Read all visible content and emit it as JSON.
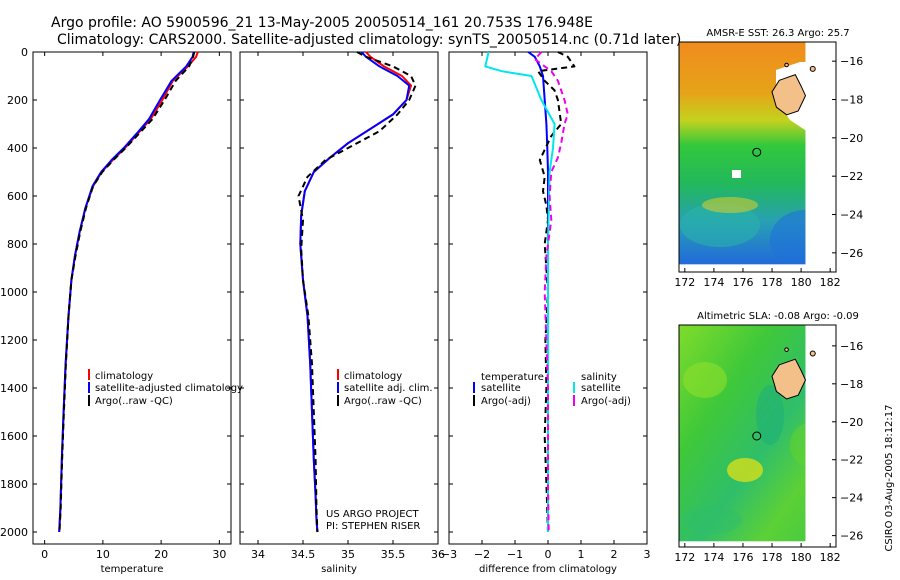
{
  "header": {
    "line1": "Argo profile: AO 5900596_21 13-May-2005 20050514_161 20.753S 176.948E",
    "line2": "Climatology: CARS2000. Satellite-adjusted climatology: synTS_20050514.nc (0.71d later)"
  },
  "colors": {
    "climatology": "#ff0000",
    "satellite": "#0000ff",
    "argo": "#000000",
    "sat_salinity": "#00e5ee",
    "argo_salinity": "#ee00ee",
    "land": "#f4c08a"
  },
  "chart_data": [
    {
      "id": "temperature",
      "type": "line",
      "xlabel": "temperature",
      "xlim": [
        -2,
        32
      ],
      "ylim": [
        2050,
        0
      ],
      "xticks": [
        0,
        10,
        20,
        30
      ],
      "yticks": [
        0,
        200,
        400,
        600,
        800,
        1000,
        1200,
        1400,
        1600,
        1800,
        2000
      ],
      "legend": [
        "climatology",
        "satellite-adjusted climatology",
        "Argo(..raw -QC)"
      ],
      "series": [
        {
          "name": "climatology",
          "color": "#ff0000",
          "dash": "",
          "x": [
            26.3,
            26.0,
            24.6,
            22.0,
            20.2,
            18.2,
            16.0,
            13.8,
            11.7,
            9.8,
            8.3,
            7.0,
            6.0,
            5.2,
            4.6,
            4.1,
            3.6,
            3.25,
            2.95,
            2.7,
            2.5
          ],
          "y": [
            0,
            20,
            60,
            120,
            200,
            280,
            340,
            400,
            450,
            500,
            560,
            650,
            750,
            850,
            950,
            1100,
            1300,
            1500,
            1700,
            1900,
            2000
          ]
        },
        {
          "name": "satellite-adjusted climatology",
          "color": "#0000ff",
          "dash": "",
          "x": [
            25.6,
            25.4,
            24.3,
            21.8,
            19.8,
            17.9,
            15.8,
            13.6,
            11.5,
            9.7,
            8.2,
            7.0,
            6.0,
            5.2,
            4.6,
            4.1,
            3.6,
            3.25,
            2.95,
            2.7,
            2.5
          ],
          "y": [
            0,
            20,
            60,
            120,
            200,
            280,
            340,
            400,
            450,
            500,
            560,
            650,
            750,
            850,
            950,
            1100,
            1300,
            1500,
            1700,
            1900,
            2000
          ]
        },
        {
          "name": "Argo(..raw -QC)",
          "color": "#000000",
          "dash": "6,4",
          "x": [
            25.7,
            25.5,
            24.8,
            22.5,
            20.6,
            18.5,
            16.2,
            13.9,
            11.8,
            9.9,
            8.3,
            7.1,
            6.1,
            5.3,
            4.6,
            4.1,
            3.65,
            3.3,
            3.0,
            2.75,
            2.55
          ],
          "y": [
            0,
            20,
            60,
            120,
            200,
            280,
            340,
            400,
            450,
            500,
            560,
            650,
            750,
            850,
            950,
            1100,
            1300,
            1500,
            1700,
            1900,
            2000
          ]
        }
      ]
    },
    {
      "id": "salinity",
      "type": "line",
      "xlabel": "salinity",
      "xlim": [
        33.8,
        36.0
      ],
      "ylim": [
        2050,
        0
      ],
      "xticks": [
        34,
        34.5,
        35,
        35.5,
        36
      ],
      "legend": [
        "climatology",
        "satellite adj. clim.",
        "Argo(..raw -QC)"
      ],
      "annotation_line1": "US ARGO PROJECT",
      "annotation_line2": "PI: STEPHEN RISER",
      "series": [
        {
          "name": "climatology",
          "color": "#ff0000",
          "dash": "",
          "x": [
            35.2,
            35.25,
            35.4,
            35.6,
            35.7,
            35.65,
            35.5,
            35.25,
            35.0,
            34.8,
            34.62,
            34.52,
            34.48,
            34.47,
            34.5,
            34.55,
            34.58,
            34.6,
            34.62,
            34.64,
            34.65,
            34.66
          ],
          "y": [
            0,
            20,
            60,
            100,
            140,
            200,
            260,
            320,
            380,
            440,
            500,
            580,
            680,
            800,
            950,
            1100,
            1300,
            1500,
            1700,
            1850,
            1950,
            2000
          ]
        },
        {
          "name": "satellite adj. clim.",
          "color": "#0000ff",
          "dash": "",
          "x": [
            35.15,
            35.2,
            35.35,
            35.55,
            35.68,
            35.65,
            35.5,
            35.25,
            35.0,
            34.8,
            34.62,
            34.52,
            34.48,
            34.47,
            34.5,
            34.55,
            34.58,
            34.6,
            34.62,
            34.64,
            34.65,
            34.66
          ],
          "y": [
            0,
            20,
            60,
            100,
            140,
            200,
            260,
            320,
            380,
            440,
            500,
            580,
            680,
            800,
            950,
            1100,
            1300,
            1500,
            1700,
            1850,
            1950,
            2000
          ]
        },
        {
          "name": "Argo(..raw -QC)",
          "color": "#000000",
          "dash": "6,4",
          "x": [
            35.1,
            35.2,
            35.5,
            35.7,
            35.75,
            35.68,
            35.55,
            35.35,
            35.05,
            34.75,
            34.55,
            34.45,
            34.5,
            34.48,
            34.5,
            34.56,
            34.6,
            34.62,
            34.64,
            34.65,
            34.66
          ],
          "y": [
            0,
            20,
            60,
            100,
            140,
            200,
            260,
            330,
            390,
            450,
            520,
            600,
            700,
            820,
            950,
            1100,
            1300,
            1500,
            1700,
            1900,
            2000
          ]
        }
      ]
    },
    {
      "id": "difference",
      "type": "line",
      "xlabel": "difference from climatology",
      "xlim": [
        -3,
        3
      ],
      "ylim": [
        2050,
        0
      ],
      "xticks": [
        -3,
        -2,
        -1,
        0,
        1,
        2,
        3
      ],
      "legend_left": {
        "heading": "temperature",
        "items": [
          "satellite",
          "Argo(-adj)"
        ]
      },
      "legend_right": {
        "heading": "salinity",
        "items": [
          "satellite",
          "Argo(-adj)"
        ]
      },
      "series": [
        {
          "name": "temperature satellite",
          "color": "#0000ff",
          "dash": "",
          "x": [
            -0.6,
            -0.4,
            -0.25,
            -0.15,
            -0.1,
            -0.05,
            -0.02,
            0,
            0,
            0,
            0
          ],
          "y": [
            0,
            20,
            60,
            100,
            200,
            300,
            400,
            500,
            800,
            1400,
            2000
          ]
        },
        {
          "name": "temperature Argo(-adj)",
          "color": "#000000",
          "dash": "6,4",
          "x": [
            0.3,
            0.6,
            0.8,
            -0.3,
            -0.1,
            0.2,
            0.3,
            0.4,
            0.1,
            -0.25,
            -0.1,
            -0.15,
            -0.05,
            0,
            -0.1,
            0,
            -0.08,
            -0.05,
            -0.1,
            -0.05,
            0
          ],
          "y": [
            0,
            20,
            60,
            80,
            120,
            160,
            200,
            300,
            350,
            450,
            520,
            580,
            640,
            700,
            800,
            1000,
            1200,
            1400,
            1600,
            1800,
            2000
          ]
        },
        {
          "name": "salinity satellite",
          "color": "#00e5ee",
          "dash": "",
          "x": [
            -1.8,
            -1.9,
            -1.4,
            -0.5,
            -0.2,
            0.2,
            0.15,
            0.05,
            0,
            0,
            0
          ],
          "y": [
            0,
            60,
            80,
            100,
            200,
            300,
            400,
            500,
            800,
            1400,
            2000
          ]
        },
        {
          "name": "salinity Argo(-adj)",
          "color": "#ee00ee",
          "dash": "6,4",
          "x": [
            -0.2,
            -0.4,
            0.1,
            0.3,
            0.5,
            0.6,
            0.5,
            0.4,
            0.3,
            0.1,
            0.05,
            0.1,
            -0.05,
            -0.1,
            0,
            0,
            0.02
          ],
          "y": [
            0,
            30,
            80,
            120,
            200,
            260,
            300,
            380,
            440,
            500,
            600,
            700,
            850,
            1000,
            1400,
            1800,
            2000
          ]
        }
      ]
    },
    {
      "id": "sst_map",
      "type": "heatmap",
      "title": "AMSR-E SST: 26.3  Argo: 25.7",
      "xlim": [
        171.6,
        182.4
      ],
      "ylim": [
        -27.0,
        -15.0
      ],
      "xticks": [
        172,
        174,
        176,
        178,
        180,
        182
      ],
      "yticks": [
        -16,
        -18,
        -20,
        -22,
        -24,
        -26
      ],
      "data_extent": [
        171.6,
        180.3,
        -26.6,
        -15.0
      ],
      "profile_location": [
        176.95,
        -20.75
      ],
      "land": [
        [
          178.5,
          -17.0
        ],
        [
          179.6,
          -16.7
        ],
        [
          180.0,
          -17.3
        ],
        [
          180.3,
          -17.8
        ],
        [
          179.8,
          -18.6
        ],
        [
          179.0,
          -18.8
        ],
        [
          178.3,
          -18.4
        ],
        [
          178.0,
          -17.6
        ]
      ]
    },
    {
      "id": "sla_map",
      "type": "heatmap",
      "title": "Altimetric SLA: -0.08  Argo: -0.09",
      "xlim": [
        171.6,
        182.4
      ],
      "ylim": [
        -26.6,
        -14.9
      ],
      "xticks": [
        172,
        174,
        176,
        178,
        180,
        182
      ],
      "yticks": [
        -16,
        -18,
        -20,
        -22,
        -24,
        -26
      ],
      "data_extent": [
        171.6,
        180.3,
        -26.3,
        -14.9
      ],
      "profile_location": [
        176.95,
        -20.75
      ],
      "land": [
        [
          178.5,
          -17.0
        ],
        [
          179.6,
          -16.7
        ],
        [
          180.0,
          -17.3
        ],
        [
          180.3,
          -17.8
        ],
        [
          179.8,
          -18.6
        ],
        [
          179.0,
          -18.8
        ],
        [
          178.3,
          -18.4
        ],
        [
          178.0,
          -17.6
        ]
      ]
    }
  ],
  "stamp": "CSIRO 03-Aug-2005 18:12:17"
}
